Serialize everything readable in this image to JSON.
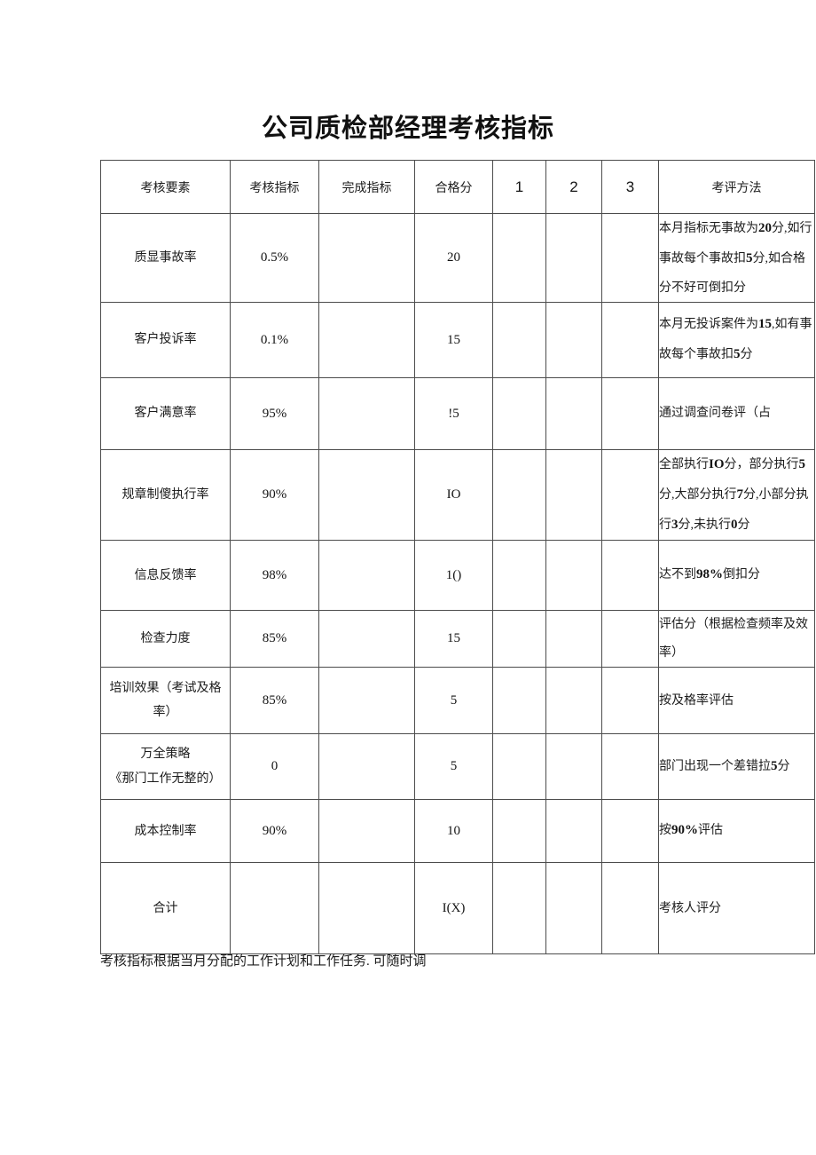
{
  "page": {
    "title": "公司质检部经理考核指标",
    "footnote": "考核指标根据当月分配的工作计划和工作任务. 可随时调",
    "ink_color": "#1c1c1c",
    "border_color": "#4c4c4c"
  },
  "table": {
    "headers": [
      "考核要素",
      "考核指标",
      "完成指标",
      "合格分",
      "1",
      "2",
      "3",
      "考评方法"
    ],
    "rows": [
      {
        "factor": "质显事故率",
        "target": "0.5%",
        "done": "",
        "pass": "20",
        "s1": "",
        "s2": "",
        "s3": "",
        "method": [
          {
            "t": "本月指标无事故为"
          },
          {
            "t": "20",
            "b": true
          },
          {
            "t": "分,如行事故每个事故扣"
          },
          {
            "t": "5",
            "b": true
          },
          {
            "t": "分,如合格分不好可倒扣分"
          }
        ]
      },
      {
        "factor": "客户投诉率",
        "target": "0.1%",
        "done": "",
        "pass": "15",
        "s1": "",
        "s2": "",
        "s3": "",
        "method": [
          {
            "t": "本月无投诉案件为"
          },
          {
            "t": "15",
            "b": true
          },
          {
            "t": ",如有事故每个事故扣"
          },
          {
            "t": "5",
            "b": true
          },
          {
            "t": "分"
          }
        ]
      },
      {
        "factor": "客户满意率",
        "target": "95%",
        "done": "",
        "pass": "!5",
        "s1": "",
        "s2": "",
        "s3": "",
        "method": [
          {
            "t": "通过调查问卷评（占"
          }
        ]
      },
      {
        "factor": "规章制傻执行率",
        "target": "90%",
        "done": "",
        "pass": "IO",
        "s1": "",
        "s2": "",
        "s3": "",
        "method": [
          {
            "t": "全部执行"
          },
          {
            "t": "IO",
            "b": true
          },
          {
            "t": "分，部分执行"
          },
          {
            "t": "5",
            "b": true
          },
          {
            "t": "分,大部分执行"
          },
          {
            "t": "7",
            "b": true
          },
          {
            "t": "分,小部分执行"
          },
          {
            "t": "3",
            "b": true
          },
          {
            "t": "分,未执行"
          },
          {
            "t": "0",
            "b": true
          },
          {
            "t": "分"
          }
        ]
      },
      {
        "factor": "信息反馈率",
        "target": "98%",
        "done": "",
        "pass": "1()",
        "s1": "",
        "s2": "",
        "s3": "",
        "method": [
          {
            "t": "达不到"
          },
          {
            "t": "98%",
            "b": true
          },
          {
            "t": "倒扣分"
          }
        ]
      },
      {
        "factor": "检查力度",
        "target": "85%",
        "done": "",
        "pass": "15",
        "s1": "",
        "s2": "",
        "s3": "",
        "method": [
          {
            "t": "评估分（根据检查频率及效率）"
          }
        ]
      },
      {
        "factor": "培训效果（考试及格\n率）",
        "target": "85%",
        "done": "",
        "pass": "5",
        "s1": "",
        "s2": "",
        "s3": "",
        "method": [
          {
            "t": "按及格率评估"
          }
        ]
      },
      {
        "factor": "万全策略\n《那门工作无整的）",
        "target": "0",
        "done": "",
        "pass": "5",
        "s1": "",
        "s2": "",
        "s3": "",
        "method": [
          {
            "t": "部门出现一个差错拉"
          },
          {
            "t": "5",
            "b": true
          },
          {
            "t": "分"
          }
        ]
      },
      {
        "factor": "成本控制率",
        "target": "90%",
        "done": "",
        "pass": "10",
        "s1": "",
        "s2": "",
        "s3": "",
        "method": [
          {
            "t": "按"
          },
          {
            "t": "90%",
            "b": true
          },
          {
            "t": "评估"
          }
        ]
      }
    ],
    "total": {
      "factor": "合计",
      "target": "",
      "done": "",
      "pass": "I(X)",
      "s1": "",
      "s2": "",
      "s3": "",
      "method": [
        {
          "t": "考核人评分"
        }
      ]
    }
  }
}
